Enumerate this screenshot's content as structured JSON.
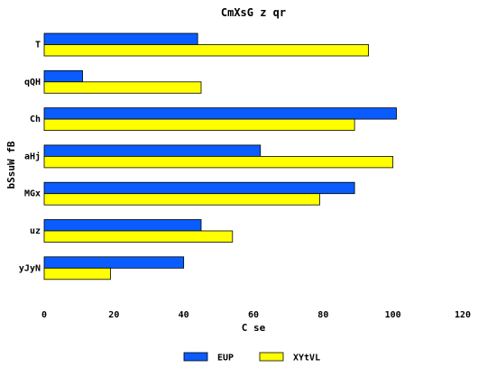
{
  "chart_data": {
    "type": "bar",
    "orientation": "horizontal",
    "title": "CmXsG z qr",
    "xlabel": "C  se",
    "ylabel": "bSsuW fB",
    "categories": [
      "T",
      "qQH",
      "Ch",
      "aHj",
      "MGx",
      "uz",
      "yJyN"
    ],
    "series": [
      {
        "name": "EUP",
        "color": "#0a5cff",
        "values": [
          44,
          11,
          101,
          62,
          89,
          45,
          40
        ]
      },
      {
        "name": "XYtVL",
        "color": "#ffff00",
        "values": [
          93,
          45,
          89,
          100,
          79,
          54,
          19
        ]
      }
    ],
    "xlim": [
      0,
      120
    ],
    "xticks": [
      "0",
      "20",
      "40",
      "60",
      "80",
      "100",
      "120"
    ],
    "grid": false,
    "legend_position": "bottom-center"
  }
}
